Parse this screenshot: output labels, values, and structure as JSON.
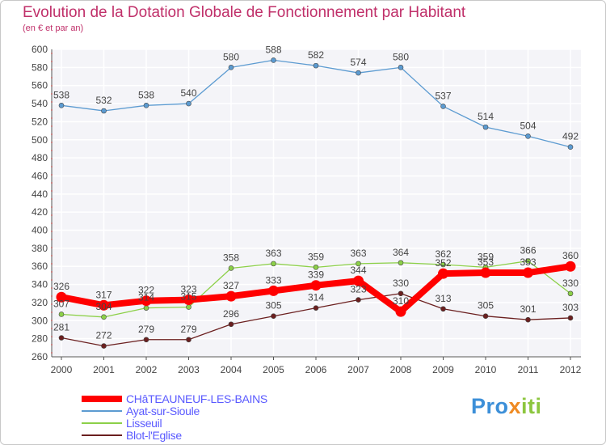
{
  "chart_data": {
    "type": "line",
    "title": "Evolution de la Dotation Globale de Fonctionnement par Habitant",
    "subtitle": "(en € et par an)",
    "xlabel": "",
    "ylabel": "",
    "ylim": [
      260,
      600
    ],
    "y_ticks": [
      260,
      280,
      300,
      320,
      340,
      360,
      380,
      400,
      420,
      440,
      460,
      480,
      500,
      520,
      540,
      560,
      580,
      600
    ],
    "grid": true,
    "categories": [
      "2000",
      "2001",
      "2002",
      "2003",
      "2004",
      "2005",
      "2006",
      "2007",
      "2008",
      "2009",
      "2010",
      "2011",
      "2012"
    ],
    "series": [
      {
        "name": "CHâTEAUNEUF-LES-BAINS",
        "color": "#ff0000",
        "values": [
          326,
          317,
          322,
          323,
          327,
          333,
          339,
          344,
          310,
          352,
          353,
          353,
          360
        ],
        "labels": [
          "326",
          "317",
          "322",
          "323",
          "327",
          "333",
          "339",
          "344",
          "310",
          "352",
          "353",
          "353",
          "360"
        ]
      },
      {
        "name": "Ayat-sur-Sioule",
        "color": "#5c9bd1",
        "values": [
          538,
          532,
          538,
          540,
          580,
          588,
          582,
          574,
          580,
          537,
          514,
          504,
          492
        ],
        "labels": [
          "538",
          "532",
          "538",
          "540",
          "580",
          "588",
          "582",
          "574",
          "580",
          "537",
          "514",
          "504",
          "492"
        ]
      },
      {
        "name": "Lisseuil",
        "color": "#8cd048",
        "values": [
          307,
          304,
          314,
          315,
          358,
          363,
          359,
          363,
          364,
          362,
          359,
          366,
          330
        ],
        "labels": [
          "307",
          "304",
          "314",
          "315",
          "358",
          "363",
          "359",
          "363",
          "364",
          "362",
          "359",
          "366",
          "330"
        ]
      },
      {
        "name": "Blot-l'Eglise",
        "color": "#6b1f1f",
        "values": [
          281,
          272,
          279,
          279,
          296,
          305,
          314,
          323,
          330,
          313,
          305,
          301,
          303
        ],
        "labels": [
          "281",
          "272",
          "279",
          "279",
          "296",
          "305",
          "314",
          "323",
          "330",
          "313",
          "305",
          "301",
          "303"
        ]
      }
    ]
  },
  "legend": {
    "items": [
      {
        "label": "CHâTEAUNEUF-LES-BAINS",
        "color": "#ff0000"
      },
      {
        "label": "Ayat-sur-Sioule",
        "color": "#5c9bd1"
      },
      {
        "label": "Lisseuil",
        "color": "#8cd048"
      },
      {
        "label": "Blot-l'Eglise",
        "color": "#6b1f1f"
      }
    ]
  },
  "brand": {
    "part1": "Pro",
    "part2": "x",
    "part3": "iti"
  }
}
